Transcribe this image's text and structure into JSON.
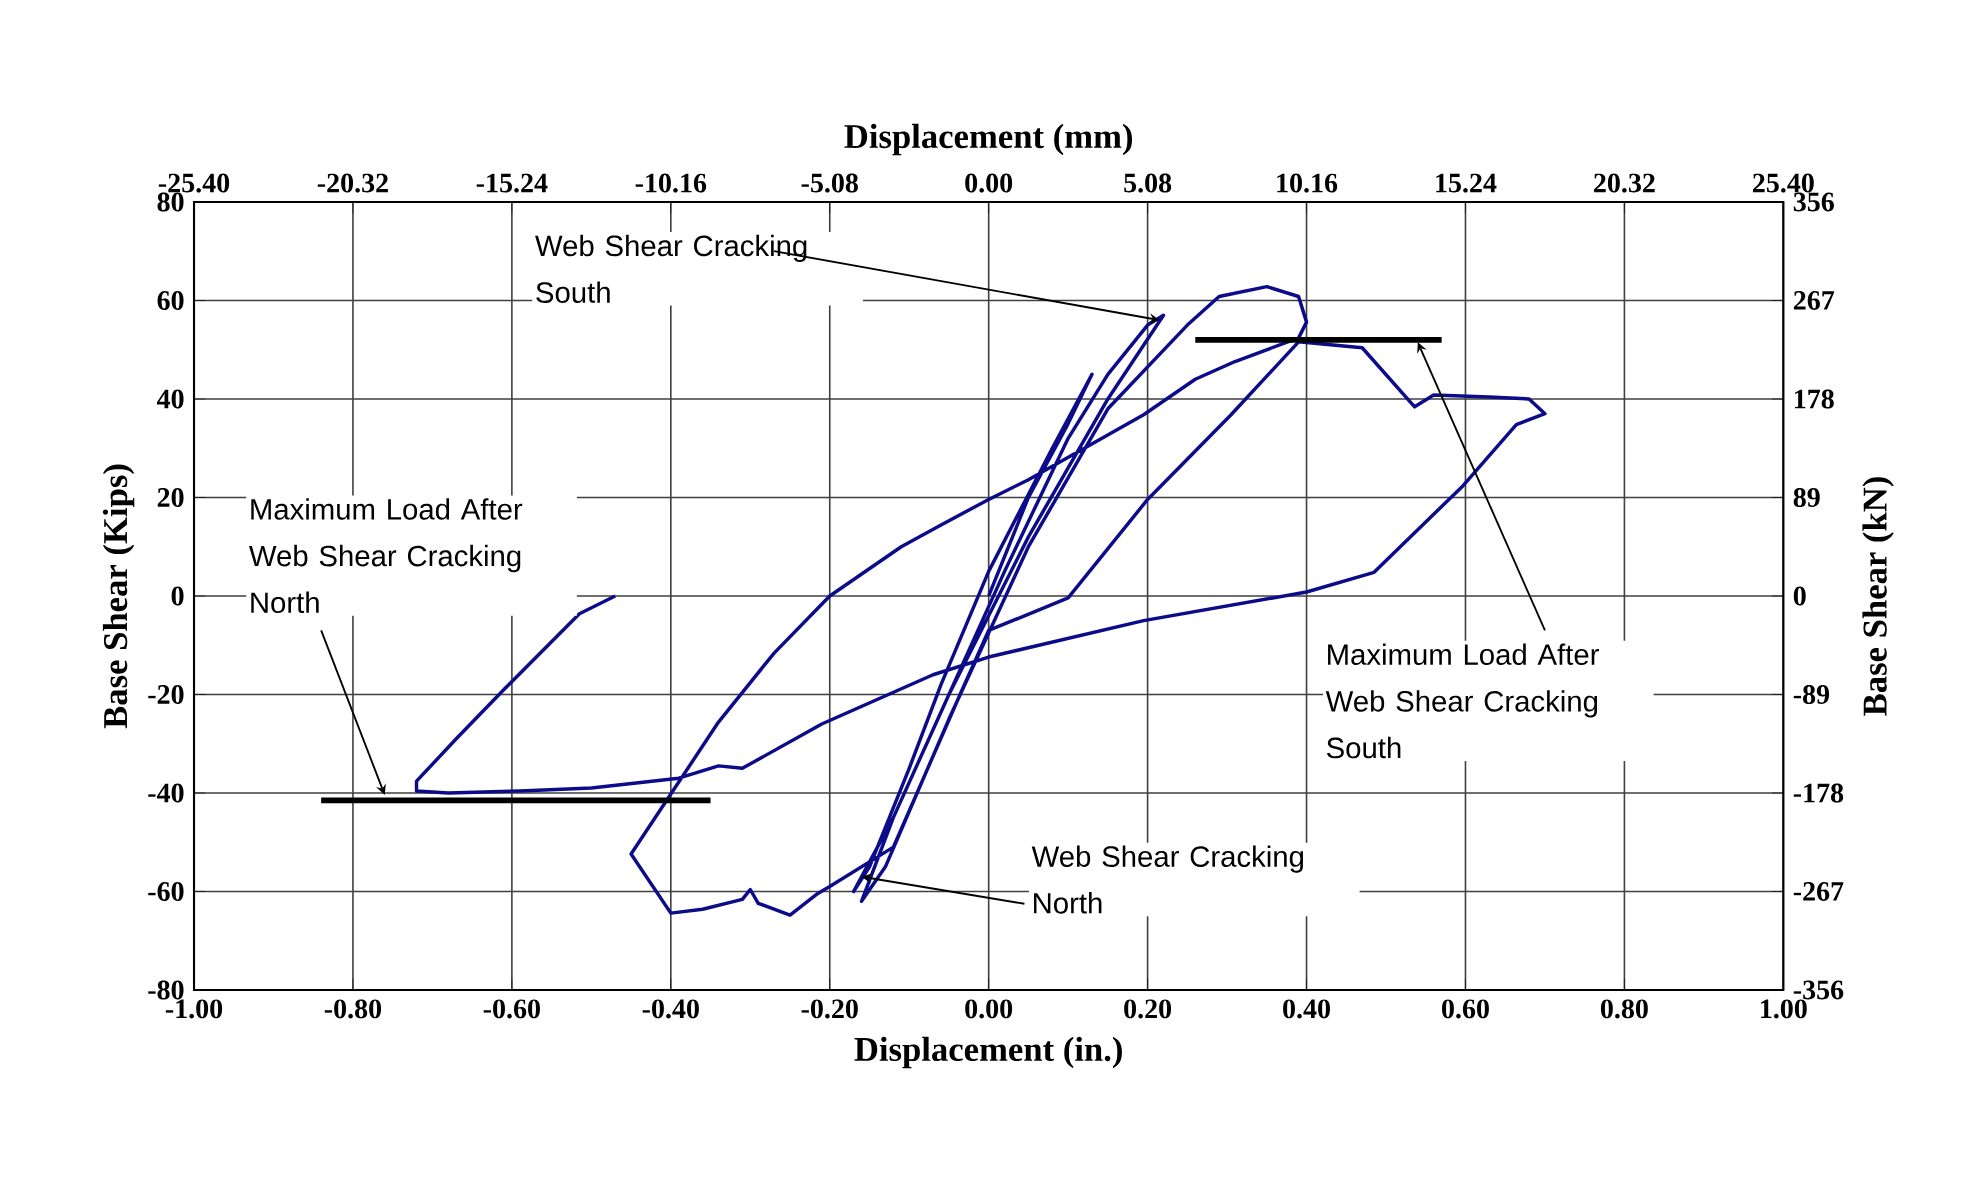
{
  "chart_data": {
    "type": "line",
    "xlabel": "Displacement (in.)",
    "x2label": "Displacement (mm)",
    "ylabel": "Base  Shear (Kips)",
    "y2label": "Base Shear (kN)",
    "xlim": [
      -1,
      1
    ],
    "ylim": [
      -80,
      80
    ],
    "x2lim": [
      -25.4,
      25.4
    ],
    "y2lim": [
      -356,
      356
    ],
    "xticks": [
      {
        "value": -1,
        "label": "-1.00"
      },
      {
        "value": -0.8,
        "label": "-0.80"
      },
      {
        "value": -0.6,
        "label": "-0.60"
      },
      {
        "value": -0.4,
        "label": "-0.40"
      },
      {
        "value": -0.2,
        "label": "-0.20"
      },
      {
        "value": 0,
        "label": "0.00"
      },
      {
        "value": 0.2,
        "label": "0.20"
      },
      {
        "value": 0.4,
        "label": "0.40"
      },
      {
        "value": 0.6,
        "label": "0.60"
      },
      {
        "value": 0.8,
        "label": "0.80"
      },
      {
        "value": 1,
        "label": "1.00"
      }
    ],
    "x2ticks": [
      {
        "value": -25.4,
        "label": "-25.40"
      },
      {
        "value": -20.32,
        "label": "-20.32"
      },
      {
        "value": -15.24,
        "label": "-15.24"
      },
      {
        "value": -10.16,
        "label": "-10.16"
      },
      {
        "value": -5.08,
        "label": "-5.08"
      },
      {
        "value": 0,
        "label": "0.00"
      },
      {
        "value": 5.08,
        "label": "5.08"
      },
      {
        "value": 10.16,
        "label": "10.16"
      },
      {
        "value": 15.24,
        "label": "15.24"
      },
      {
        "value": 20.32,
        "label": "20.32"
      },
      {
        "value": 25.4,
        "label": "25.40"
      }
    ],
    "yticks": [
      -80,
      -60,
      -40,
      -20,
      0,
      20,
      40,
      60,
      80
    ],
    "y2ticks": [
      -356,
      -267,
      -178,
      -89,
      0,
      89,
      178,
      267,
      356
    ],
    "grid": true,
    "series": [
      {
        "color": "#0c0c8a",
        "x": [
          0,
          0.05,
          0.1,
          0.13,
          0.08,
          0,
          -0.06,
          -0.1,
          -0.15,
          -0.17,
          -0.12,
          -0.05,
          0.02,
          0.1,
          0.15,
          0.2,
          0.22,
          0.15,
          0.05,
          -0.05,
          -0.12,
          -0.16,
          -0.13,
          -0.05,
          0.05,
          0.15,
          0.25,
          0.29,
          0.35,
          0.39,
          0.4,
          0.39,
          0.31,
          0.26,
          0.195,
          0.05,
          0,
          -0.06,
          -0.11,
          -0.2,
          -0.27,
          -0.34,
          -0.45,
          -0.4,
          -0.36,
          -0.31,
          -0.3,
          -0.29,
          -0.25,
          -0.215,
          -0.2,
          -0.12,
          -0.036,
          0,
          0.1,
          0.2,
          0.305,
          0.39,
          0.47,
          0.536,
          0.56,
          0.63,
          0.68,
          0.7,
          0.664,
          0.597,
          0.485,
          0.4,
          0.195,
          0,
          -0.07,
          -0.21,
          -0.31,
          -0.34,
          -0.39,
          -0.5,
          -0.59,
          -0.68,
          -0.72,
          -0.72,
          -0.67,
          -0.61,
          -0.515,
          -0.47
        ],
        "values": [
          0,
          20,
          35,
          45,
          30,
          5,
          -18,
          -35,
          -55,
          -60,
          -45,
          -20,
          5,
          32,
          45,
          55,
          57,
          40,
          12,
          -20,
          -45,
          -62,
          -55,
          -25,
          10,
          38,
          55,
          60.8,
          62.8,
          60.8,
          55.6,
          52.4,
          47.6,
          44,
          36.8,
          23.6,
          19.6,
          14.4,
          10,
          0,
          -11.6,
          -25.6,
          -52.4,
          -64.4,
          -63.6,
          -61.6,
          -59.6,
          -62.4,
          -64.8,
          -60.4,
          -59,
          -51,
          -20,
          -7,
          -0.4,
          19.6,
          36.8,
          51.6,
          50.4,
          38.4,
          40.8,
          40.4,
          40,
          37,
          34.8,
          22.4,
          4.8,
          0.8,
          -5,
          -12.4,
          -16,
          -26,
          -35,
          -34.5,
          -37,
          -39,
          -39.6,
          -40,
          -39.6,
          -37.6,
          -29,
          -19,
          -3.6,
          0
        ]
      },
      {
        "color": "#000000",
        "x": [
          0.26,
          0.57
        ],
        "values": [
          52,
          52
        ]
      },
      {
        "color": "#000000",
        "x": [
          -0.84,
          -0.35
        ],
        "values": [
          -41.5,
          -41.5
        ]
      }
    ],
    "annotations": [
      {
        "text": "Web Shear Cracking South",
        "x": 0.215,
        "y": 56
      },
      {
        "text": "Maximum Load After Web Shear Cracking North",
        "x": -0.76,
        "y": -40.4
      },
      {
        "text": "Web Shear Cracking North",
        "x": -0.16,
        "y": -57
      },
      {
        "text": "Maximum Load After Web Shear Cracking South",
        "x": 0.54,
        "y": 51.5
      }
    ]
  }
}
